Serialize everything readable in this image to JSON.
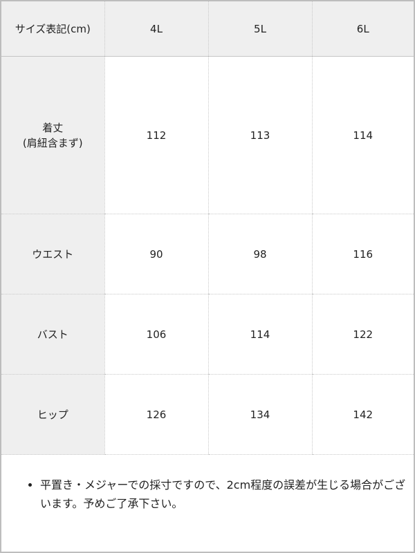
{
  "table": {
    "header": [
      "サイズ表記(cm)",
      "4L",
      "5L",
      "6L"
    ],
    "rows": [
      {
        "label_line1": "着丈",
        "label_line2": "(肩紐含まず)",
        "values": [
          "112",
          "113",
          "114"
        ]
      },
      {
        "label_line1": "ウエスト",
        "values": [
          "90",
          "98",
          "116"
        ]
      },
      {
        "label_line1": "バスト",
        "values": [
          "106",
          "114",
          "122"
        ]
      },
      {
        "label_line1": "ヒップ",
        "values": [
          "126",
          "134",
          "142"
        ]
      }
    ]
  },
  "note": {
    "items": [
      "平置き・メジャーでの採寸ですので、2cm程度の誤差が生じる場合がございます。予めご了承下さい。"
    ]
  }
}
